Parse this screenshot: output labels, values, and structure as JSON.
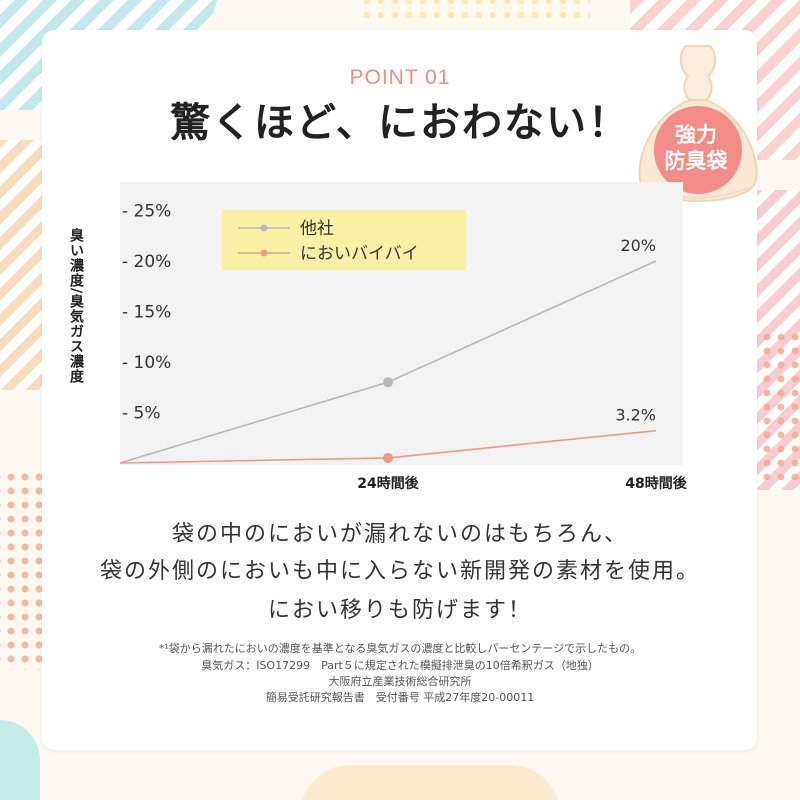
{
  "header": {
    "point_label": "POINT 01",
    "headline": "驚くほど、におわない！"
  },
  "badge": {
    "line1": "強力",
    "line2": "防臭袋"
  },
  "chart_data": {
    "type": "line",
    "ylabel": "臭い濃度/臭気ガス濃度",
    "yticks": [
      "- 25%",
      "- 20%",
      "- 15%",
      "- 10%",
      "- 5%"
    ],
    "ytick_values": [
      25,
      20,
      15,
      10,
      5
    ],
    "ylim": [
      0,
      27
    ],
    "x": [
      0,
      24,
      48
    ],
    "xlabels": [
      "24時間後",
      "48時間後"
    ],
    "series": [
      {
        "name": "他社",
        "values": [
          0,
          8.0,
          20.0
        ],
        "color": "#b8b8b8",
        "end_label": "20%"
      },
      {
        "name": "においバイバイ",
        "values": [
          0,
          0.5,
          3.2
        ],
        "color": "#f09a8c",
        "end_label": "3.2%"
      }
    ],
    "legend": "top-left",
    "grid": false
  },
  "description": {
    "line1": "袋の中のにおいが漏れないのはもちろん、",
    "line2": "袋の外側のにおいも中に入らない新開発の素材を使用。",
    "line3": "におい移りも防げます！"
  },
  "footnotes": {
    "line1": "*¹袋から漏れたにおいの濃度を基準となる臭気ガスの濃度と比較しパーセンテージで示したもの。",
    "line2": "臭気ガス：ISO17299　Part５に規定された模擬排泄臭の10倍希釈ガス（地独）",
    "line3": "大阪府立産業技術総合研究所",
    "line4": "簡易受託研究報告書　受付番号 平成27年度20-00011"
  },
  "colors": {
    "accent": "#f18c86",
    "legend_bg": "#fbf1a6",
    "bag": "#fbe9d6",
    "badge": "#f18c86"
  }
}
